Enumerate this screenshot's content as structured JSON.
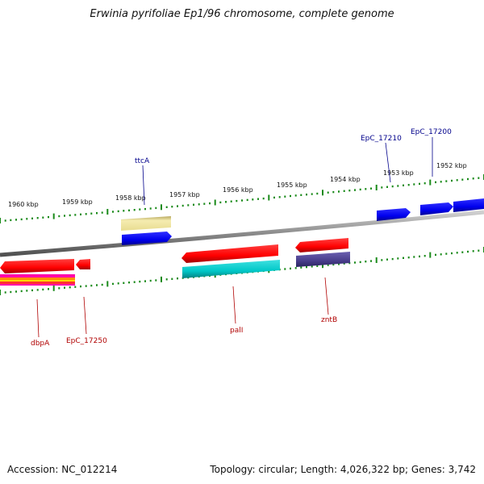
{
  "title": "Erwinia pyrifoliae Ep1/96 chromosome, complete genome",
  "footer": {
    "accession": "Accession: NC_012214",
    "topology": "Topology: circular; Length: 4,026,322 bp; Genes: 3,742"
  },
  "ruler_labels": [
    "1960 kbp",
    "1959 kbp",
    "1958 kbp",
    "1957 kbp",
    "1956 kbp",
    "1955 kbp",
    "1954 kbp",
    "1953 kbp",
    "1952 kbp"
  ],
  "colors": {
    "backbone": "#8a8a8a",
    "tick": "#1a8a1a",
    "forward_label": "#00008b",
    "reverse_label": "#b00000",
    "red_feature": "#ff0000",
    "blue_feature": "#0000ee",
    "cyan_feature": "#00c8c8",
    "khaki_feature": "#f0e68c",
    "slate_feature": "#483d8b"
  },
  "forward_genes": [
    "ttcA",
    "EpC_17210",
    "EpC_17200"
  ],
  "reverse_genes": [
    "dbpA",
    "EpC_17250",
    "palI",
    "zntB"
  ]
}
